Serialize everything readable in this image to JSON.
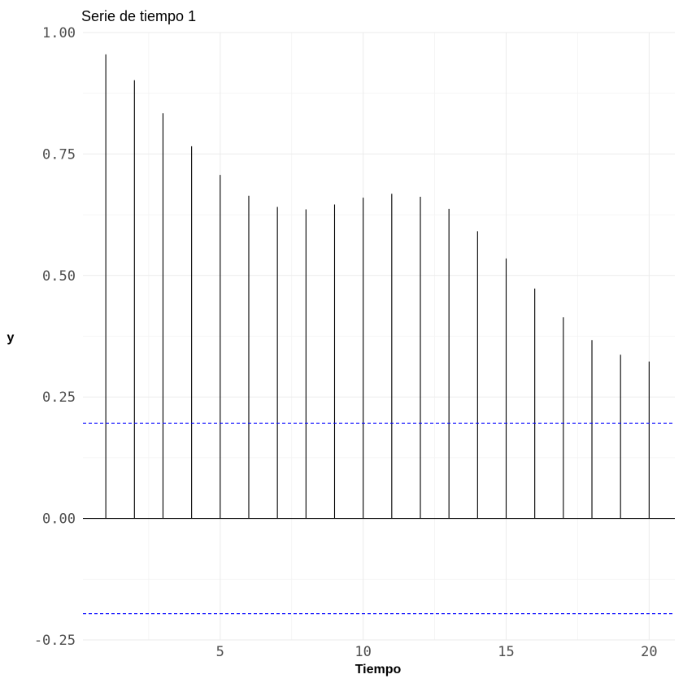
{
  "chart_data": {
    "type": "bar",
    "title": "Serie de tiempo 1",
    "xlabel": "Tiempo",
    "ylabel": "y",
    "x": [
      1,
      2,
      3,
      4,
      5,
      6,
      7,
      8,
      9,
      10,
      11,
      12,
      13,
      14,
      15,
      16,
      17,
      18,
      19,
      20
    ],
    "values": [
      0.955,
      0.902,
      0.834,
      0.766,
      0.707,
      0.664,
      0.641,
      0.636,
      0.646,
      0.66,
      0.668,
      0.662,
      0.637,
      0.591,
      0.535,
      0.473,
      0.414,
      0.367,
      0.337,
      0.323
    ],
    "xlim": [
      0.2,
      20.9
    ],
    "ylim": [
      -0.25,
      1.0
    ],
    "x_ticks": [
      5,
      10,
      15,
      20
    ],
    "x_tick_labels": [
      "5",
      "10",
      "15",
      "20"
    ],
    "y_ticks": [
      -0.25,
      0.0,
      0.25,
      0.5,
      0.75,
      1.0
    ],
    "y_tick_labels": [
      "-0.25",
      "0.00",
      "0.25",
      "0.50",
      "0.75",
      "1.00"
    ],
    "confidence_bounds": [
      0.196,
      -0.196
    ],
    "bar_color": "#000000",
    "bound_color": "#0000ff",
    "grid": true,
    "legend": "none"
  }
}
